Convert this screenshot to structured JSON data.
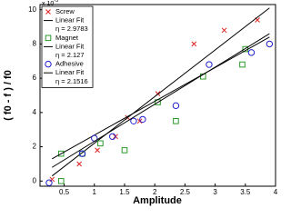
{
  "chart_data": {
    "type": "scatter",
    "xlabel": "Amplitude",
    "ylabel": "( f0 - f ) / f0",
    "y_scale_label": {
      "base": "x 10",
      "exponent": "-3"
    },
    "xlim": [
      0.1,
      4.0
    ],
    "xticks": [
      0.5,
      1,
      1.5,
      2,
      2.5,
      3,
      3.5,
      4
    ],
    "ylim": [
      -0.3,
      10.3
    ],
    "yticks": [
      0,
      2,
      4,
      6,
      8,
      10
    ],
    "grid": false,
    "legend": "upper left",
    "series": [
      {
        "name": "Screw",
        "type": "scatter",
        "marker": "x",
        "color": "#e02020",
        "x": [
          0.3,
          0.75,
          1.05,
          1.35,
          1.55,
          1.75,
          2.05,
          2.65,
          3.15,
          3.7
        ],
        "values": [
          0.1,
          1.0,
          1.8,
          2.6,
          3.7,
          3.5,
          5.1,
          8.0,
          8.8,
          9.4
        ]
      },
      {
        "name": "Linear Fit",
        "note": "η = 2.9783",
        "type": "line",
        "color": "#000000",
        "x": [
          0.3,
          3.9
        ],
        "values": [
          0.3,
          10.1
        ]
      },
      {
        "name": "Magnet",
        "type": "scatter",
        "marker": "square",
        "color": "#2a9a2a",
        "x": [
          0.45,
          0.45,
          0.8,
          1.1,
          1.5,
          2.05,
          2.35,
          2.8,
          3.45,
          3.5
        ],
        "values": [
          0.0,
          1.6,
          1.6,
          2.2,
          1.8,
          4.6,
          3.5,
          6.1,
          6.8,
          7.7
        ]
      },
      {
        "name": "Linear Fit",
        "note": "η = 2.127",
        "type": "line",
        "color": "#000000",
        "x": [
          0.3,
          3.9
        ],
        "values": [
          1.3,
          8.4
        ]
      },
      {
        "name": "Adhesive",
        "type": "scatter",
        "marker": "circle",
        "color": "#2020d0",
        "x": [
          0.25,
          0.8,
          1.0,
          1.3,
          1.65,
          1.8,
          2.35,
          2.9,
          3.6,
          3.9
        ],
        "values": [
          -0.1,
          1.6,
          2.5,
          2.6,
          3.5,
          3.6,
          4.4,
          6.8,
          7.5,
          8.0
        ]
      },
      {
        "name": "Linear Fit",
        "note": "η = 2.1516",
        "type": "line",
        "color": "#000000",
        "x": [
          0.3,
          3.9
        ],
        "values": [
          0.8,
          8.6
        ]
      }
    ]
  }
}
